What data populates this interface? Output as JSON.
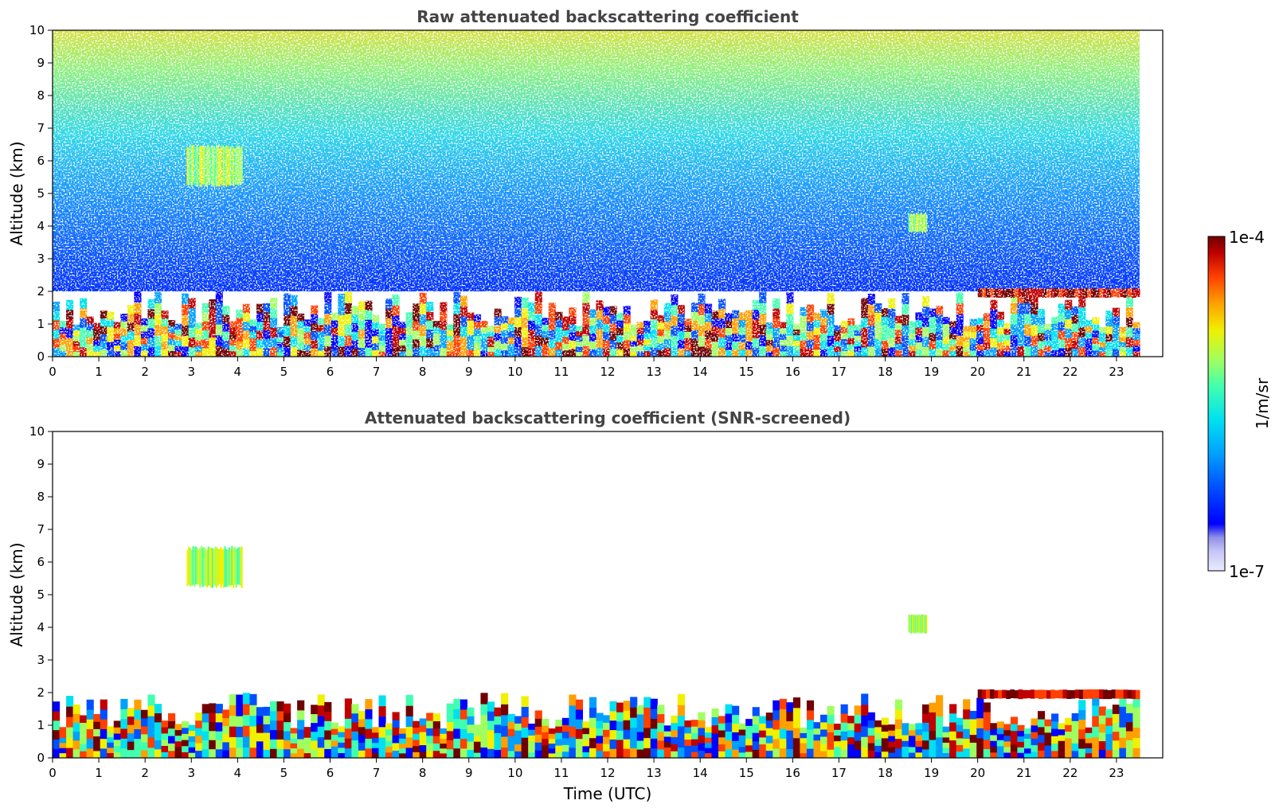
{
  "chart_data": [
    {
      "type": "heatmap",
      "title": "Raw attenuated backscattering coefficient",
      "xlabel": "",
      "ylabel": "Altitude (km)",
      "xlim": [
        0,
        24
      ],
      "ylim": [
        0,
        10
      ],
      "data_x_range": [
        0,
        23.5
      ],
      "x_ticks": [
        "0",
        "1",
        "2",
        "3",
        "4",
        "5",
        "6",
        "7",
        "8",
        "9",
        "10",
        "11",
        "12",
        "13",
        "14",
        "15",
        "16",
        "17",
        "18",
        "19",
        "20",
        "21",
        "22",
        "23"
      ],
      "y_ticks": [
        "0",
        "1",
        "2",
        "3",
        "4",
        "5",
        "6",
        "7",
        "8",
        "9",
        "10"
      ],
      "noise_level": "high",
      "features": [
        {
          "name": "boundary layer",
          "x": [
            0,
            23.5
          ],
          "y": [
            0,
            2.0
          ]
        },
        {
          "name": "cloud top layer",
          "x": [
            20,
            23.5
          ],
          "y": [
            1.8,
            2.1
          ]
        },
        {
          "name": "elevated aerosol",
          "x": [
            2.9,
            4.1
          ],
          "y": [
            5.2,
            6.5
          ]
        },
        {
          "name": "low level blob",
          "x": [
            18.5,
            18.9
          ],
          "y": [
            3.8,
            4.4
          ]
        }
      ]
    },
    {
      "type": "heatmap",
      "title": "Attenuated backscattering coefficient (SNR-screened)",
      "xlabel": "Time (UTC)",
      "ylabel": "Altitude (km)",
      "xlim": [
        0,
        24
      ],
      "ylim": [
        0,
        10
      ],
      "data_x_range": [
        0,
        23.5
      ],
      "x_ticks": [
        "0",
        "1",
        "2",
        "3",
        "4",
        "5",
        "6",
        "7",
        "8",
        "9",
        "10",
        "11",
        "12",
        "13",
        "14",
        "15",
        "16",
        "17",
        "18",
        "19",
        "20",
        "21",
        "22",
        "23"
      ],
      "y_ticks": [
        "0",
        "1",
        "2",
        "3",
        "4",
        "5",
        "6",
        "7",
        "8",
        "9",
        "10"
      ],
      "noise_level": "screened",
      "features": [
        {
          "name": "boundary layer",
          "x": [
            0,
            23.5
          ],
          "y": [
            0,
            2.0
          ]
        },
        {
          "name": "cloud top layer",
          "x": [
            20,
            23.5
          ],
          "y": [
            1.8,
            2.1
          ]
        },
        {
          "name": "elevated aerosol",
          "x": [
            2.9,
            4.1
          ],
          "y": [
            5.2,
            6.5
          ]
        },
        {
          "name": "low level blob",
          "x": [
            18.5,
            18.9
          ],
          "y": [
            3.8,
            4.4
          ]
        }
      ]
    }
  ],
  "colorbar": {
    "label": "1/m/sr",
    "max_label": "1e-4",
    "min_label": "1e-7",
    "colormap": "jet",
    "colors": [
      "#ebebff",
      "#c4c4f5",
      "#8f8fe8",
      "#0000ff",
      "#0050ff",
      "#00a0ff",
      "#00e0f0",
      "#40ffb0",
      "#a0ff60",
      "#f0f000",
      "#ffa000",
      "#ff4000",
      "#c00000",
      "#700000"
    ]
  }
}
